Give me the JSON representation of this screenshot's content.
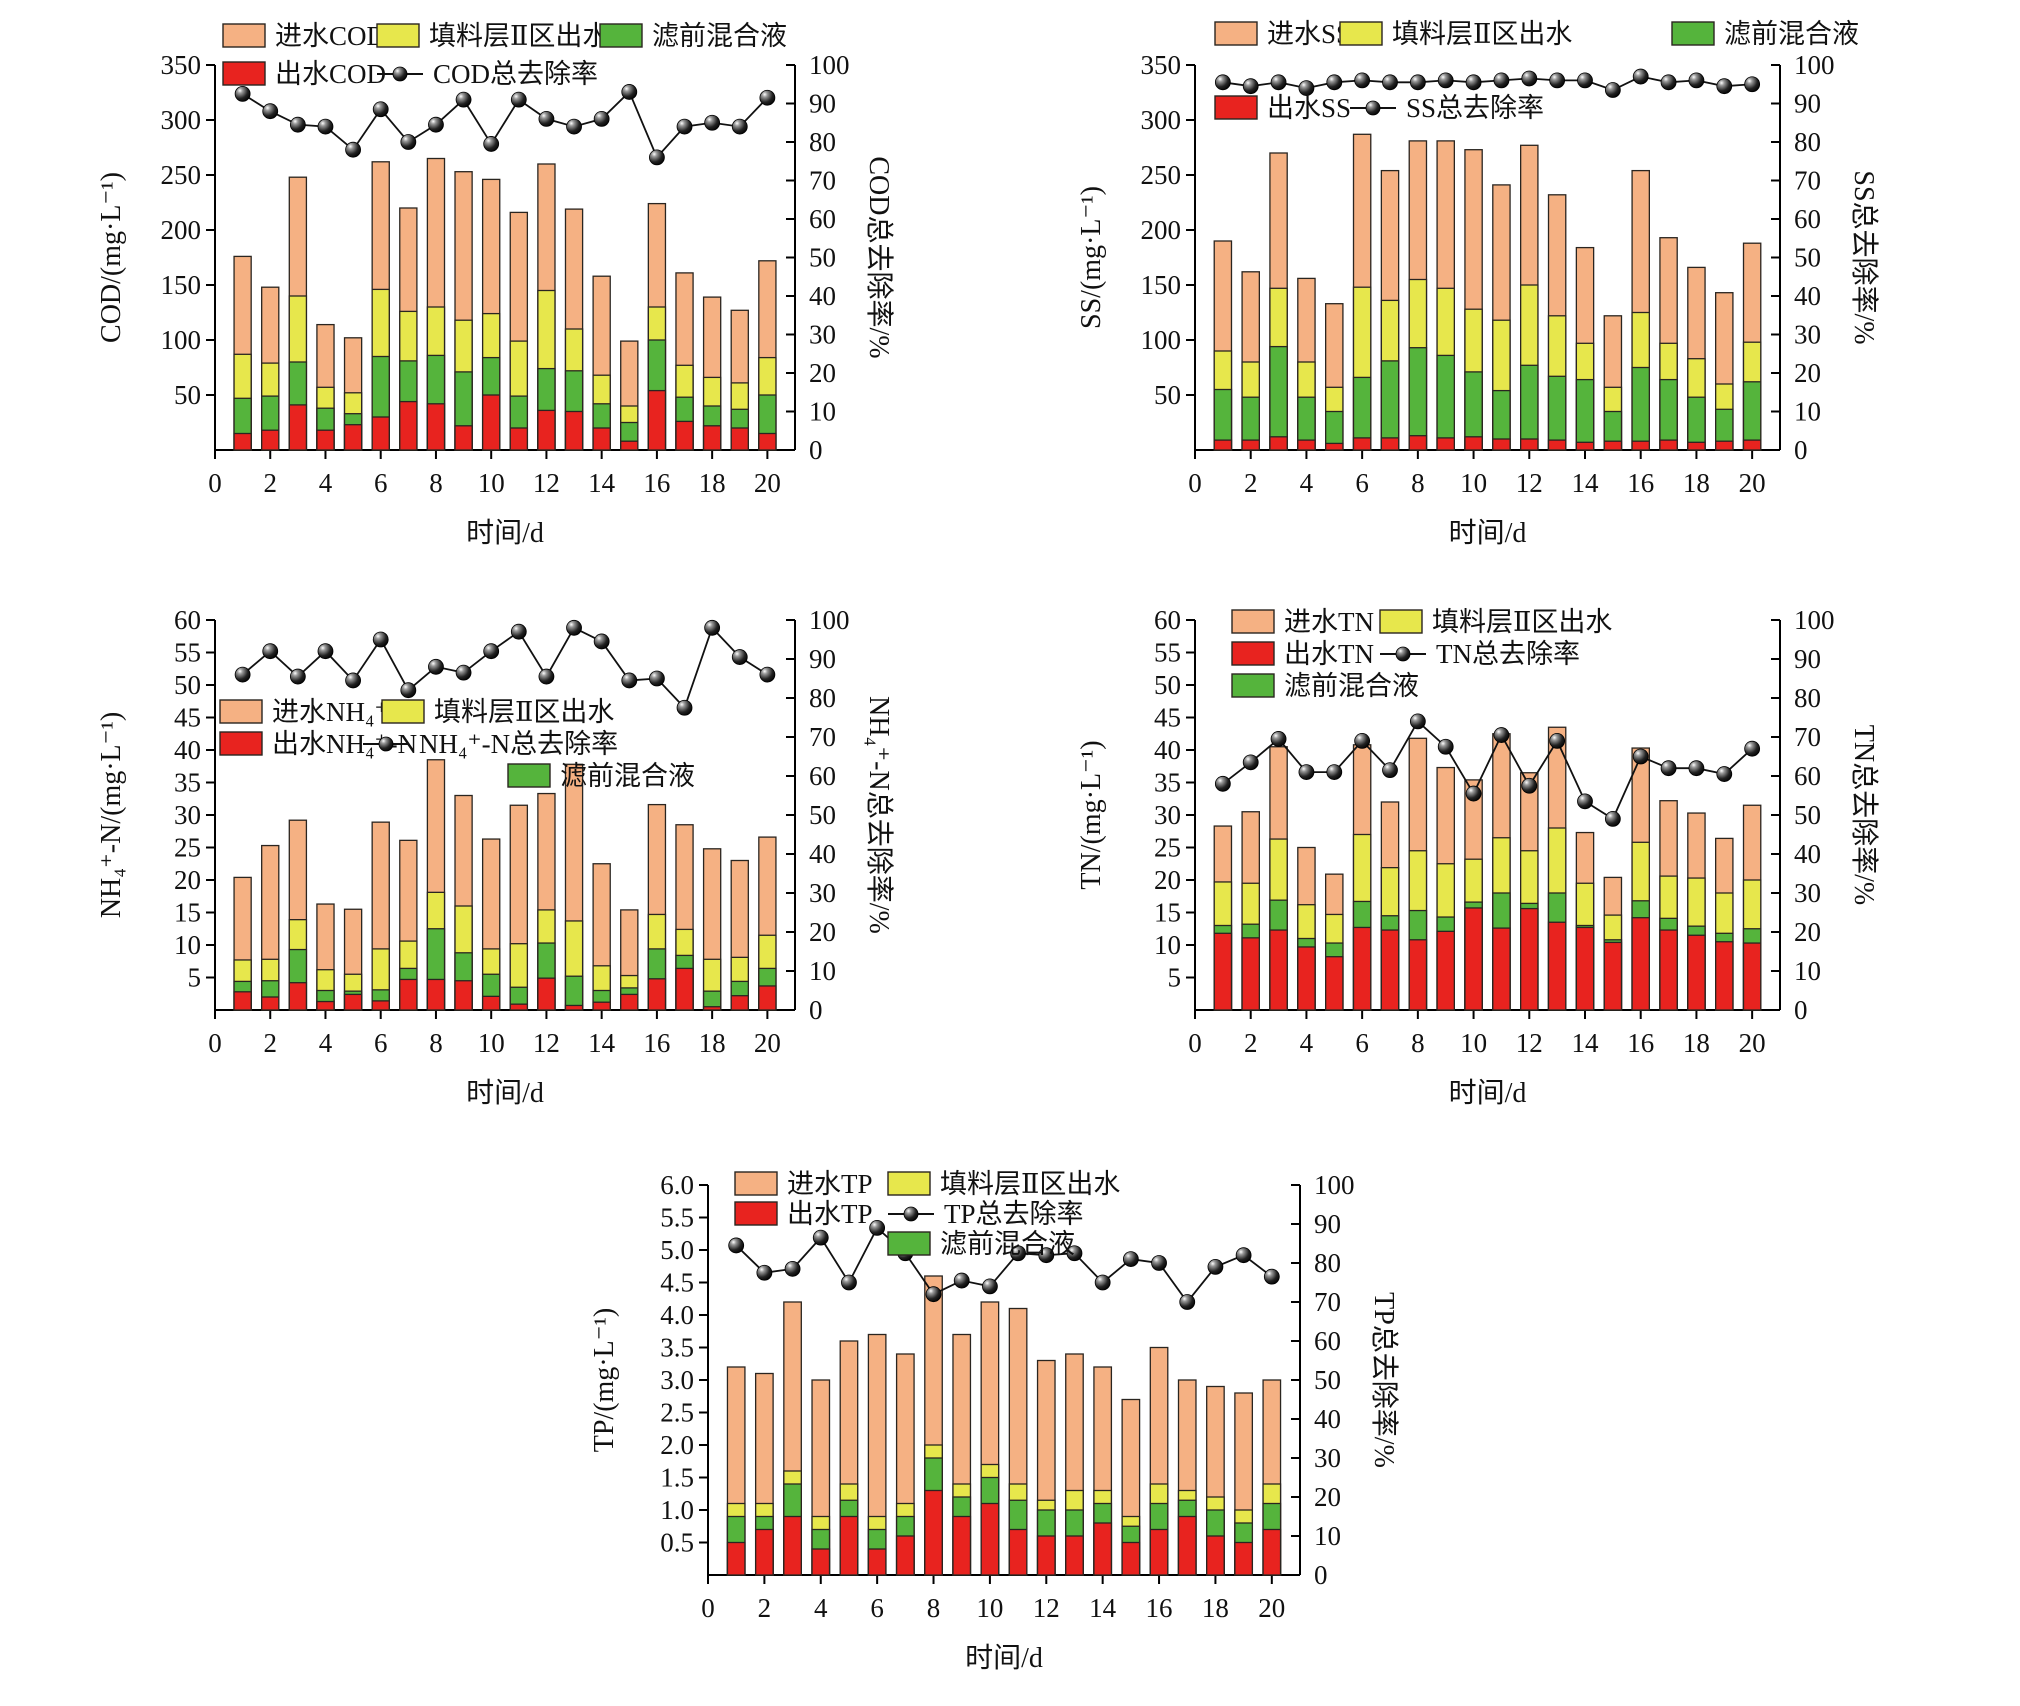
{
  "figure": {
    "x_label": "时间/d",
    "x_ticks": [
      "0",
      "2",
      "4",
      "6",
      "8",
      "10",
      "12",
      "14",
      "16",
      "18",
      "20"
    ],
    "right_ticks": [
      "0",
      "10",
      "20",
      "30",
      "40",
      "50",
      "60",
      "70",
      "80",
      "90",
      "100"
    ],
    "days": [
      1,
      2,
      3,
      4,
      5,
      6,
      7,
      8,
      9,
      10,
      11,
      12,
      13,
      14,
      15,
      16,
      17,
      18,
      19,
      20
    ]
  },
  "colors": {
    "influent": "#F5B183",
    "packing": "#E7E74C",
    "mixed": "#55B43C",
    "effluent": "#E8231F",
    "line": "#111111",
    "bar_border": "#2A2520",
    "axis": "#000000"
  },
  "chart_data": [
    {
      "id": "cod",
      "type": "bar",
      "y_axis_label": "COD/(mg·L⁻¹)",
      "y2_axis_label": "COD总去除率/%",
      "x_axis_label": "时间/d",
      "ylim": [
        0,
        350
      ],
      "y2lim": [
        0,
        100
      ],
      "y_ticks": [
        "50",
        "100",
        "150",
        "200",
        "250",
        "300",
        "350"
      ],
      "series": [
        {
          "key": "influent",
          "label": "进水COD",
          "values": [
            176,
            148,
            248,
            114,
            102,
            262,
            220,
            265,
            253,
            246,
            216,
            260,
            219,
            158,
            99,
            224,
            161,
            139,
            127,
            172
          ]
        },
        {
          "key": "packing",
          "label": "填料层Ⅱ区出水",
          "values": [
            87,
            79,
            140,
            57,
            52,
            146,
            126,
            130,
            118,
            124,
            99,
            145,
            110,
            68,
            40,
            130,
            77,
            66,
            61,
            84
          ]
        },
        {
          "key": "mixed",
          "label": "滤前混合液",
          "values": [
            47,
            49,
            80,
            38,
            33,
            85,
            81,
            86,
            71,
            84,
            49,
            74,
            72,
            42,
            25,
            100,
            48,
            40,
            37,
            50
          ]
        },
        {
          "key": "effluent",
          "label": "出水COD",
          "values": [
            15,
            18,
            41,
            18,
            23,
            30,
            44,
            42,
            22,
            50,
            20,
            36,
            35,
            20,
            8,
            54,
            26,
            22,
            20,
            15
          ]
        }
      ],
      "line": {
        "key": "removal",
        "label": "COD总去除率",
        "values": [
          92.5,
          88,
          84.5,
          84,
          78,
          88.5,
          80,
          84.5,
          91,
          79.5,
          91,
          86,
          84,
          86,
          93,
          76,
          84,
          85,
          84,
          91.5
        ]
      }
    },
    {
      "id": "ss",
      "type": "bar",
      "y_axis_label": "SS/(mg·L⁻¹)",
      "y2_axis_label": "SS总去除率/%",
      "x_axis_label": "时间/d",
      "ylim": [
        0,
        350
      ],
      "y2lim": [
        0,
        100
      ],
      "y_ticks": [
        "50",
        "100",
        "150",
        "200",
        "250",
        "300",
        "350"
      ],
      "series": [
        {
          "key": "influent",
          "label": "进水SS",
          "values": [
            190,
            162,
            270,
            156,
            133,
            287,
            254,
            281,
            281,
            273,
            241,
            277,
            232,
            184,
            122,
            254,
            193,
            166,
            143,
            188
          ]
        },
        {
          "key": "packing",
          "label": "填料层Ⅱ区出水",
          "values": [
            90,
            80,
            147,
            80,
            57,
            148,
            136,
            155,
            147,
            128,
            118,
            150,
            122,
            97,
            57,
            125,
            97,
            83,
            60,
            98
          ]
        },
        {
          "key": "mixed",
          "label": "滤前混合液",
          "values": [
            55,
            48,
            94,
            48,
            35,
            66,
            81,
            93,
            86,
            71,
            54,
            77,
            67,
            64,
            35,
            75,
            64,
            48,
            37,
            62
          ]
        },
        {
          "key": "effluent",
          "label": "出水SS",
          "values": [
            9,
            9,
            12,
            9,
            6,
            11,
            11,
            13,
            11,
            12,
            10,
            10,
            9,
            7,
            8,
            8,
            9,
            7,
            8,
            9
          ]
        }
      ],
      "line": {
        "key": "removal",
        "label": "SS总去除率",
        "values": [
          95.5,
          94.5,
          95.5,
          94,
          95.5,
          96,
          95.5,
          95.5,
          96,
          95.5,
          96,
          96.5,
          96,
          96,
          93.5,
          97,
          95.5,
          96,
          94.5,
          95
        ]
      }
    },
    {
      "id": "nh4",
      "type": "bar",
      "y_axis_label": "NH₄⁺-N/(mg·L⁻¹)",
      "y2_axis_label": "NH₄⁺-N总去除率/%",
      "x_axis_label": "时间/d",
      "ylim": [
        0,
        60
      ],
      "y2lim": [
        0,
        100
      ],
      "y_ticks": [
        "5",
        "10",
        "15",
        "20",
        "25",
        "30",
        "35",
        "40",
        "45",
        "50",
        "55",
        "60"
      ],
      "series": [
        {
          "key": "influent",
          "label": "进水NH₄⁺-N",
          "values": [
            20.4,
            25.3,
            29.2,
            16.3,
            15.5,
            28.9,
            26.1,
            38.5,
            33.0,
            26.3,
            31.5,
            33.3,
            37.8,
            22.5,
            15.4,
            31.6,
            28.5,
            24.8,
            23.0,
            26.6
          ]
        },
        {
          "key": "packing",
          "label": "填料层Ⅱ区出水",
          "values": [
            7.7,
            7.8,
            13.9,
            6.2,
            5.5,
            9.4,
            10.6,
            18.1,
            16.0,
            9.4,
            10.2,
            15.4,
            13.7,
            6.8,
            5.3,
            14.7,
            12.4,
            7.8,
            8.1,
            11.5
          ]
        },
        {
          "key": "mixed",
          "label": "滤前混合液",
          "values": [
            4.4,
            4.5,
            9.3,
            3.0,
            2.9,
            3.1,
            6.4,
            12.5,
            8.8,
            5.5,
            3.5,
            10.3,
            5.2,
            3.0,
            3.4,
            9.4,
            8.4,
            2.9,
            4.4,
            6.4
          ]
        },
        {
          "key": "effluent",
          "label": "出水NH₄⁺-N",
          "values": [
            2.8,
            2.0,
            4.2,
            1.3,
            2.4,
            1.4,
            4.7,
            4.7,
            4.5,
            2.1,
            0.9,
            4.9,
            0.7,
            1.2,
            2.4,
            4.8,
            6.4,
            0.5,
            2.2,
            3.7
          ]
        }
      ],
      "line": {
        "key": "removal",
        "label": "NH₄⁺-N总去除率",
        "values": [
          86,
          92,
          85.5,
          92,
          84.5,
          95,
          82,
          88,
          86.5,
          92,
          97,
          85.5,
          98,
          94.5,
          84.5,
          85,
          77.5,
          98,
          90.5,
          86
        ]
      }
    },
    {
      "id": "tn",
      "type": "bar",
      "y_axis_label": "TN/(mg·L⁻¹)",
      "y2_axis_label": "TN总去除率/%",
      "x_axis_label": "时间/d",
      "ylim": [
        0,
        60
      ],
      "y2lim": [
        0,
        100
      ],
      "y_ticks": [
        "5",
        "10",
        "15",
        "20",
        "25",
        "30",
        "35",
        "40",
        "45",
        "50",
        "55",
        "60"
      ],
      "series": [
        {
          "key": "influent",
          "label": "进水TN",
          "values": [
            28.3,
            30.5,
            40.5,
            25.0,
            20.9,
            40.8,
            32.0,
            41.8,
            37.3,
            35.4,
            42.5,
            36.5,
            43.5,
            27.3,
            20.4,
            40.3,
            32.2,
            30.3,
            26.4,
            31.5
          ]
        },
        {
          "key": "packing",
          "label": "填料层Ⅱ区出水",
          "values": [
            19.7,
            19.5,
            26.3,
            16.2,
            14.7,
            27.0,
            21.9,
            24.5,
            22.5,
            23.2,
            26.5,
            24.5,
            28.0,
            19.5,
            14.6,
            25.8,
            20.6,
            20.3,
            18.0,
            20.0
          ]
        },
        {
          "key": "mixed",
          "label": "滤前混合液",
          "values": [
            13.0,
            13.2,
            16.9,
            11.0,
            10.3,
            16.7,
            14.5,
            15.3,
            14.3,
            16.6,
            18.0,
            16.4,
            18.0,
            13.0,
            10.8,
            16.8,
            14.1,
            12.9,
            11.8,
            12.5
          ]
        },
        {
          "key": "effluent",
          "label": "出水TN",
          "values": [
            11.8,
            11.1,
            12.3,
            9.7,
            8.2,
            12.7,
            12.3,
            10.8,
            12.1,
            15.7,
            12.6,
            15.6,
            13.5,
            12.7,
            10.4,
            14.2,
            12.3,
            11.5,
            10.5,
            10.3
          ]
        }
      ],
      "line": {
        "key": "removal",
        "label": "TN总去除率",
        "values": [
          58,
          63.5,
          69.5,
          61,
          61,
          69,
          61.5,
          74,
          67.5,
          55.5,
          70.5,
          57.5,
          69,
          53.5,
          49,
          65,
          62,
          62,
          60.5,
          67
        ]
      }
    },
    {
      "id": "tp",
      "type": "bar",
      "y_axis_label": "TP/(mg·L⁻¹)",
      "y2_axis_label": "TP总去除率/%",
      "x_axis_label": "时间/d",
      "ylim": [
        0,
        6
      ],
      "y2lim": [
        0,
        100
      ],
      "y_ticks": [
        "0.5",
        "1.0",
        "1.5",
        "2.0",
        "2.5",
        "3.0",
        "3.5",
        "4.0",
        "4.5",
        "5.0",
        "5.5",
        "6.0"
      ],
      "series": [
        {
          "key": "influent",
          "label": "进水TP",
          "values": [
            3.2,
            3.1,
            4.2,
            3.0,
            3.6,
            3.7,
            3.4,
            4.6,
            3.7,
            4.2,
            4.1,
            3.3,
            3.4,
            3.2,
            2.7,
            3.5,
            3.0,
            2.9,
            2.8,
            3.0
          ]
        },
        {
          "key": "packing",
          "label": "填料层Ⅱ区出水",
          "values": [
            1.1,
            1.1,
            1.6,
            0.9,
            1.4,
            0.9,
            1.1,
            2.0,
            1.4,
            1.7,
            1.4,
            1.15,
            1.3,
            1.3,
            0.9,
            1.4,
            1.3,
            1.2,
            1.0,
            1.4
          ]
        },
        {
          "key": "mixed",
          "label": "滤前混合液",
          "values": [
            0.9,
            0.9,
            1.4,
            0.7,
            1.15,
            0.7,
            0.9,
            1.8,
            1.2,
            1.5,
            1.15,
            1.0,
            1.0,
            1.1,
            0.75,
            1.1,
            1.15,
            1.0,
            0.8,
            1.1
          ]
        },
        {
          "key": "effluent",
          "label": "出水TP",
          "values": [
            0.5,
            0.7,
            0.9,
            0.4,
            0.9,
            0.4,
            0.6,
            1.3,
            0.9,
            1.1,
            0.7,
            0.6,
            0.6,
            0.8,
            0.5,
            0.7,
            0.9,
            0.6,
            0.5,
            0.7
          ]
        }
      ],
      "line": {
        "key": "removal",
        "label": "TP总去除率",
        "values": [
          84.5,
          77.5,
          78.5,
          86.5,
          75,
          89,
          82.5,
          72,
          75.5,
          74,
          82.5,
          82,
          82.5,
          75,
          81,
          80,
          70,
          79,
          82,
          76.5
        ]
      }
    }
  ]
}
